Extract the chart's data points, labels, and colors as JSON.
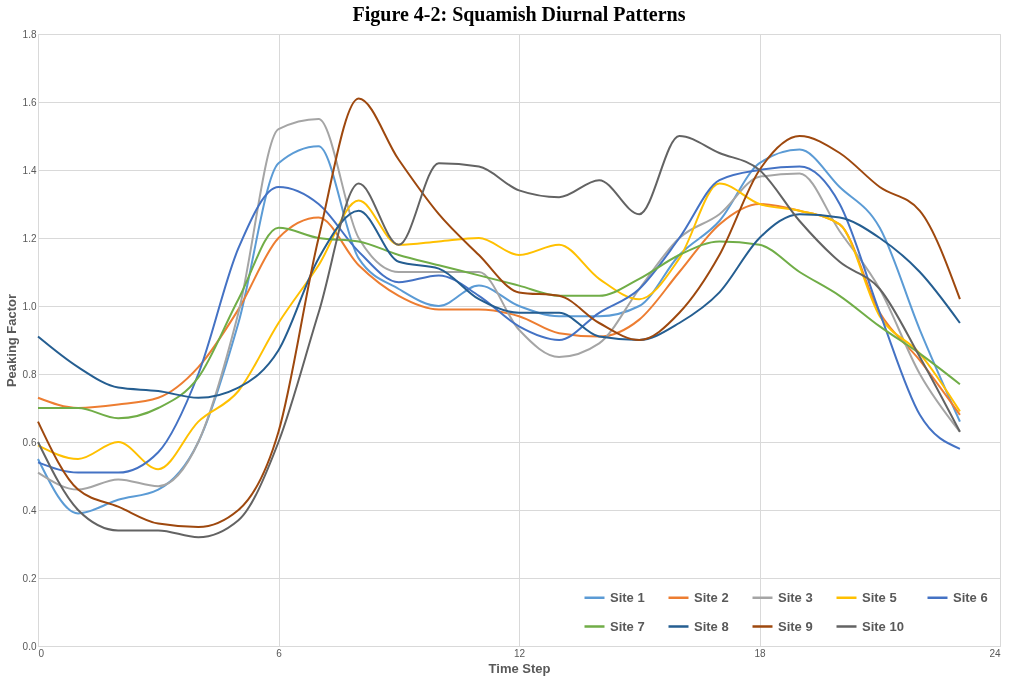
{
  "chart_data": {
    "type": "line",
    "title": "Figure 4-2: Squamish Diurnal Patterns",
    "xlabel": "Time Step",
    "ylabel": "Peaking Factor",
    "x": [
      0,
      1,
      2,
      3,
      4,
      5,
      6,
      7,
      8,
      9,
      10,
      11,
      12,
      13,
      14,
      15,
      16,
      17,
      18,
      19,
      20,
      21,
      22,
      23
    ],
    "xlim": [
      0,
      24
    ],
    "xticks": [
      0,
      6,
      12,
      18,
      24
    ],
    "ylim": [
      0,
      1.8
    ],
    "yticks": [
      {
        "value": 0,
        "label": "0.0"
      },
      {
        "value": 0.2,
        "label": "0.2"
      },
      {
        "value": 0.4,
        "label": "0.4"
      },
      {
        "value": 0.6,
        "label": "0.6"
      },
      {
        "value": 0.8,
        "label": "0.8"
      },
      {
        "value": 1.0,
        "label": "1.0"
      },
      {
        "value": 1.2,
        "label": "1.2"
      },
      {
        "value": 1.4,
        "label": "1.4"
      },
      {
        "value": 1.6,
        "label": "1.6"
      },
      {
        "value": 1.8,
        "label": "1.8"
      }
    ],
    "grid": true,
    "legend": "bottom right",
    "marker": "none",
    "line_style": "solid",
    "series": [
      {
        "name": "Site 1",
        "color": "#5b9bd5",
        "values": [
          0.55,
          0.39,
          0.43,
          0.46,
          0.6,
          0.95,
          1.42,
          1.47,
          1.14,
          1.05,
          1.0,
          1.06,
          1.0,
          0.97,
          0.97,
          1.0,
          1.15,
          1.25,
          1.42,
          1.46,
          1.35,
          1.23,
          0.93,
          0.66
        ]
      },
      {
        "name": "Site 2",
        "color": "#ed7d31",
        "values": [
          0.73,
          0.7,
          0.71,
          0.73,
          0.82,
          0.99,
          1.2,
          1.26,
          1.12,
          1.03,
          0.99,
          0.99,
          0.97,
          0.92,
          0.91,
          0.96,
          1.1,
          1.24,
          1.3,
          1.28,
          1.24,
          0.98,
          0.84,
          0.68
        ]
      },
      {
        "name": "Site 3",
        "color": "#a5a5a5",
        "values": [
          0.51,
          0.46,
          0.49,
          0.47,
          0.6,
          0.98,
          1.52,
          1.55,
          1.2,
          1.1,
          1.1,
          1.1,
          0.93,
          0.85,
          0.89,
          1.05,
          1.2,
          1.27,
          1.38,
          1.39,
          1.22,
          1.05,
          0.8,
          0.63
        ]
      },
      {
        "name": "Site 5",
        "color": "#ffc000",
        "values": [
          0.59,
          0.55,
          0.6,
          0.52,
          0.66,
          0.75,
          0.95,
          1.12,
          1.31,
          1.18,
          1.19,
          1.2,
          1.15,
          1.18,
          1.08,
          1.02,
          1.14,
          1.36,
          1.3,
          1.28,
          1.24,
          0.97,
          0.86,
          0.69
        ]
      },
      {
        "name": "Site 6",
        "color": "#4472c4",
        "values": [
          0.54,
          0.51,
          0.51,
          0.57,
          0.8,
          1.17,
          1.35,
          1.3,
          1.16,
          1.07,
          1.09,
          1.03,
          0.94,
          0.9,
          0.98,
          1.05,
          1.2,
          1.37,
          1.4,
          1.41,
          1.3,
          0.98,
          0.68,
          0.58
        ]
      },
      {
        "name": "Site 7",
        "color": "#70ad47",
        "values": [
          0.7,
          0.7,
          0.67,
          0.7,
          0.79,
          1.02,
          1.23,
          1.2,
          1.19,
          1.15,
          1.12,
          1.09,
          1.06,
          1.03,
          1.03,
          1.08,
          1.15,
          1.19,
          1.18,
          1.1,
          1.03,
          0.94,
          0.86,
          0.77
        ]
      },
      {
        "name": "Site 8",
        "color": "#255e91",
        "values": [
          0.91,
          0.82,
          0.76,
          0.75,
          0.73,
          0.76,
          0.87,
          1.14,
          1.28,
          1.13,
          1.11,
          1.02,
          0.98,
          0.98,
          0.91,
          0.9,
          0.95,
          1.04,
          1.2,
          1.27,
          1.26,
          1.2,
          1.1,
          0.95
        ]
      },
      {
        "name": "Site 9",
        "color": "#9e480e",
        "values": [
          0.66,
          0.46,
          0.41,
          0.36,
          0.35,
          0.4,
          0.63,
          1.2,
          1.61,
          1.43,
          1.27,
          1.15,
          1.04,
          1.03,
          0.95,
          0.9,
          0.98,
          1.15,
          1.4,
          1.5,
          1.45,
          1.35,
          1.28,
          1.02
        ]
      },
      {
        "name": "Site 10",
        "color": "#636363",
        "values": [
          0.6,
          0.4,
          0.34,
          0.34,
          0.32,
          0.37,
          0.6,
          0.98,
          1.36,
          1.18,
          1.42,
          1.41,
          1.34,
          1.32,
          1.37,
          1.27,
          1.5,
          1.45,
          1.4,
          1.25,
          1.13,
          1.05,
          0.85,
          0.63
        ]
      }
    ]
  }
}
